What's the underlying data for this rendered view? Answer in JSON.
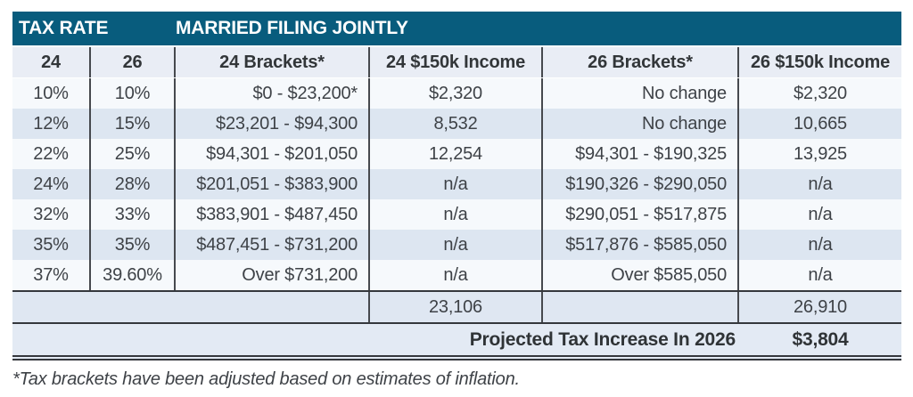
{
  "chart_data": {
    "type": "table",
    "title_bar": {
      "left": "TAX RATE",
      "right": "MARRIED FILING JOINTLY"
    },
    "columns": [
      "24",
      "26",
      "24 Brackets*",
      "24 $150k Income",
      "26 Brackets*",
      "26 $150k Income"
    ],
    "rows": [
      [
        "10%",
        "10%",
        "$0 - $23,200*",
        "$2,320",
        "No change",
        "$2,320"
      ],
      [
        "12%",
        "15%",
        "$23,201 - $94,300",
        "8,532",
        "No change",
        "10,665"
      ],
      [
        "22%",
        "25%",
        "$94,301 - $201,050",
        "12,254",
        "$94,301 - $190,325",
        "13,925"
      ],
      [
        "24%",
        "28%",
        "$201,051 - $383,900",
        "n/a",
        "$190,326 - $290,050",
        "n/a"
      ],
      [
        "32%",
        "33%",
        "$383,901 - $487,450",
        "n/a",
        "$290,051 - $517,875",
        "n/a"
      ],
      [
        "35%",
        "35%",
        "$487,451 - $731,200",
        "n/a",
        "$517,876 - $585,050",
        "n/a"
      ],
      [
        "37%",
        "39.60%",
        "Over $731,200",
        "n/a",
        "Over $585,050",
        "n/a"
      ]
    ],
    "subtotal": {
      "income_24_total": "23,106",
      "income_26_total": "26,910"
    },
    "projection": {
      "label": "Projected Tax Increase In 2026",
      "value": "$3,804"
    },
    "footnote": "*Tax brackets have been adjusted based on estimates of inflation.",
    "layout": {
      "grid": "off",
      "stripe_style": "alternating light / pale-blue data rows"
    }
  },
  "colors": {
    "title_bar_bg": "#085C7D",
    "title_text": "#FFFFFF",
    "header_row_bg": "#E9EDF5",
    "row_light_bg": "#F6F9FC",
    "row_blue_bg": "#DDE6F1",
    "summary_row_bg": "#E3EAF4",
    "separator_line": "#46494E",
    "heavy_rule": "#35383D",
    "body_text": "#3E4247"
  }
}
